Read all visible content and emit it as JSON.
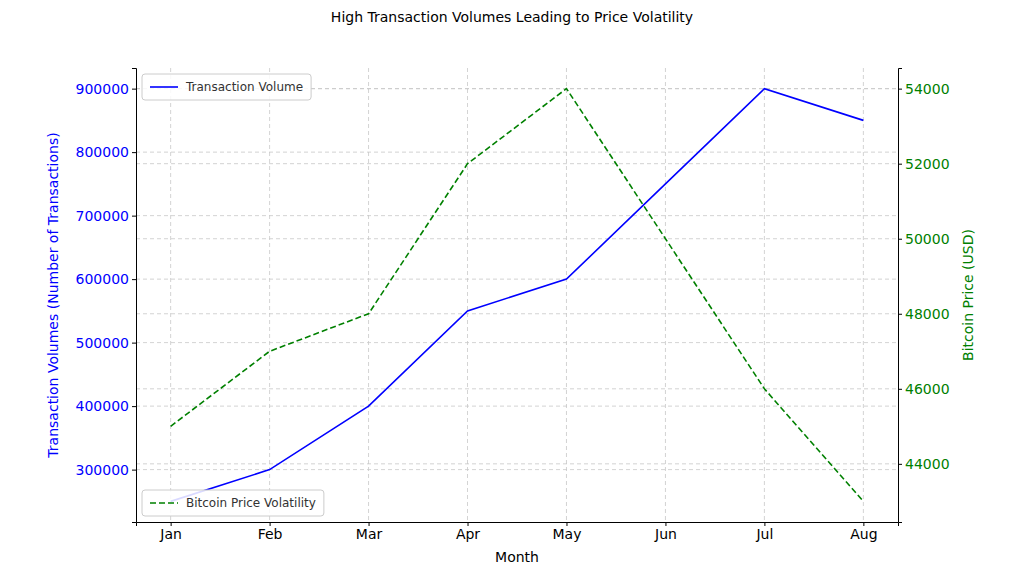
{
  "chart_data": {
    "type": "line",
    "title": "High Transaction Volumes Leading to Price Volatility",
    "x_label": "Month",
    "y_label": "Transaction Volumes (Number of Transactions)",
    "y2_label": "Bitcoin Price (USD)",
    "categories": [
      "Jan",
      "Feb",
      "Mar",
      "Apr",
      "May",
      "Jun",
      "Jul",
      "Aug"
    ],
    "series": [
      {
        "name": "Transaction Volume",
        "color": "#0000ff",
        "line_style": "solid",
        "legend": "upper left",
        "values": [
          250000,
          300000,
          400000,
          550000,
          600000,
          750000,
          900000,
          850000
        ]
      },
      {
        "name": "Bitcoin Price Volatility",
        "color": "#008000",
        "line_style": "dashed",
        "axis": "y2",
        "legend": "lower left",
        "values": [
          45000,
          47000,
          48000,
          52000,
          54000,
          50000,
          46000,
          43000
        ]
      }
    ],
    "ylim": [
      217500,
      932500
    ],
    "yticks": [
      300000,
      400000,
      500000,
      600000,
      700000,
      800000,
      900000
    ],
    "y2lim": [
      42450,
      54550
    ],
    "y2ticks": [
      44000,
      46000,
      48000,
      50000,
      52000,
      54000
    ],
    "grid": true
  }
}
